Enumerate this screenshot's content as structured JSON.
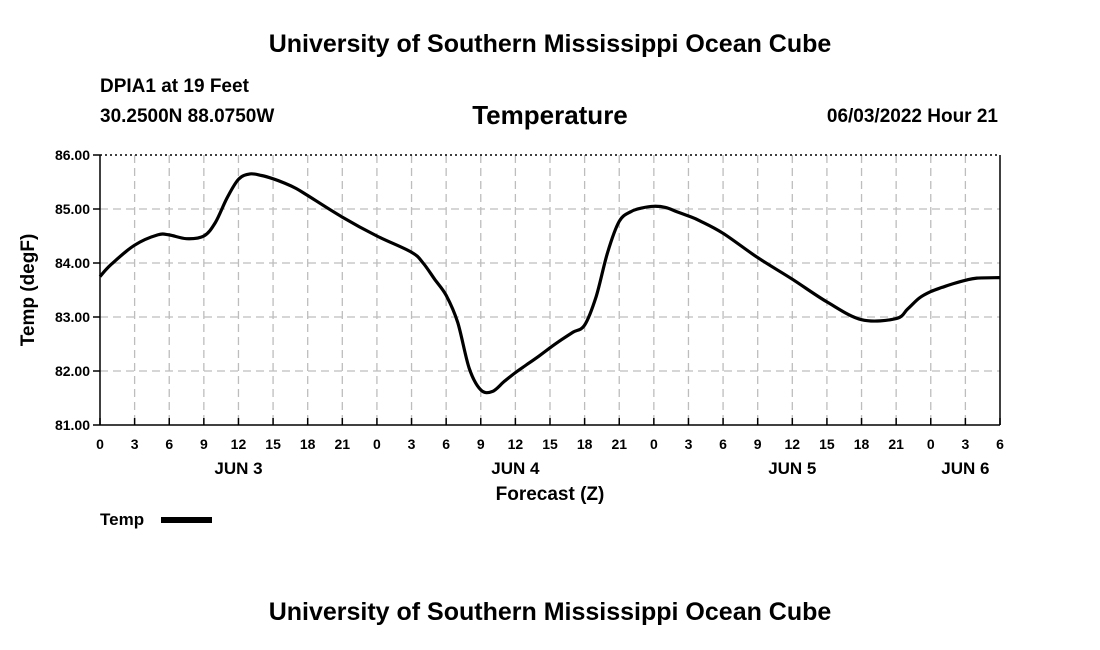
{
  "header": {
    "title": "University of Southern Mississippi Ocean Cube",
    "station": "DPIA1 at 19 Feet",
    "coordinates": "30.2500N  88.0750W",
    "datetime": "06/03/2022 Hour 21"
  },
  "footer": {
    "title": "University of Southern Mississippi Ocean Cube"
  },
  "legend": {
    "label": "Temp"
  },
  "chart_data": {
    "type": "line",
    "title": "Temperature",
    "xlabel": "Forecast (Z)",
    "ylabel": "Temp (degF)",
    "ylim": [
      81,
      86
    ],
    "xlim": [
      0,
      78
    ],
    "grid": true,
    "y_ticks": [
      "81.00",
      "82.00",
      "83.00",
      "84.00",
      "85.00",
      "86.00"
    ],
    "x_tick_labels": [
      "0",
      "3",
      "6",
      "9",
      "12",
      "15",
      "18",
      "21",
      "0",
      "3",
      "6",
      "9",
      "12",
      "15",
      "18",
      "21",
      "0",
      "3",
      "6",
      "9",
      "12",
      "15",
      "18",
      "21",
      "0",
      "3",
      "6"
    ],
    "day_labels": [
      {
        "label": "JUN 3",
        "hour": 12
      },
      {
        "label": "JUN 4",
        "hour": 36
      },
      {
        "label": "JUN 5",
        "hour": 60
      },
      {
        "label": "JUN 6",
        "hour": 75
      }
    ],
    "series": [
      {
        "name": "Temp",
        "x": [
          0,
          1,
          3,
          5,
          6,
          7.5,
          9,
          10,
          11,
          12,
          13,
          14,
          15,
          16,
          17,
          18,
          21,
          24,
          27,
          28,
          29,
          30,
          31,
          32,
          33,
          34,
          35,
          36,
          37,
          38,
          39,
          40,
          41,
          42,
          43,
          44,
          45,
          46,
          47,
          48,
          49,
          50,
          51,
          52,
          54,
          57,
          60,
          63,
          66,
          69,
          70,
          71,
          72,
          73,
          74,
          75,
          76,
          78
        ],
        "values": [
          83.75,
          83.98,
          84.33,
          84.52,
          84.52,
          84.45,
          84.5,
          84.75,
          85.2,
          85.55,
          85.65,
          85.62,
          85.56,
          85.48,
          85.38,
          85.25,
          84.85,
          84.5,
          84.2,
          84.0,
          83.7,
          83.4,
          82.9,
          82.05,
          81.65,
          81.62,
          81.8,
          81.97,
          82.12,
          82.27,
          82.43,
          82.58,
          82.72,
          82.85,
          83.38,
          84.2,
          84.77,
          84.95,
          85.02,
          85.05,
          85.03,
          84.95,
          84.87,
          84.78,
          84.55,
          84.1,
          83.7,
          83.28,
          82.95,
          82.97,
          83.15,
          83.35,
          83.47,
          83.55,
          83.62,
          83.68,
          83.72,
          83.73
        ]
      }
    ]
  }
}
